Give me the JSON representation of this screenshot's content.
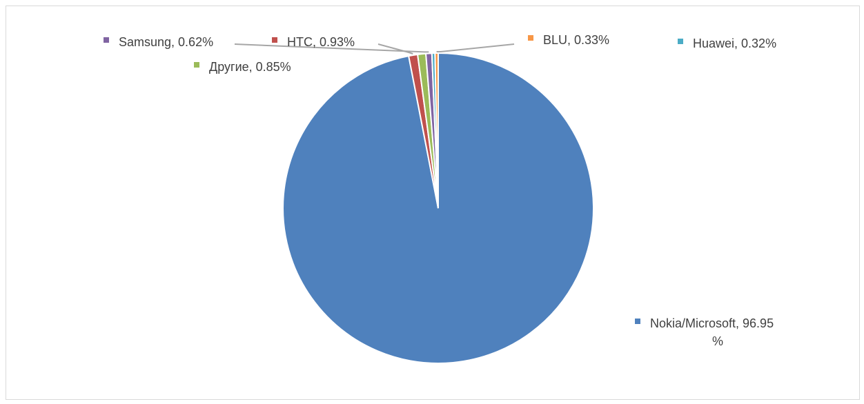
{
  "chart_data": {
    "type": "pie",
    "title": "",
    "start_angle_deg": 0,
    "direction": "clockwise",
    "slices": [
      {
        "name": "Nokia/Microsoft",
        "value": 96.95,
        "label": "Nokia/Microsoft, 96.95 %",
        "color": "#4F81BD"
      },
      {
        "name": "HTC",
        "value": 0.93,
        "label": "HTC, 0.93%",
        "color": "#C0504D"
      },
      {
        "name": "Другие",
        "value": 0.85,
        "label": "Другие, 0.85%",
        "color": "#9BBB59"
      },
      {
        "name": "Samsung",
        "value": 0.62,
        "label": "Samsung, 0.62%",
        "color": "#8064A2"
      },
      {
        "name": "Huawei",
        "value": 0.32,
        "label": "Huawei, 0.32%",
        "color": "#4BACC6"
      },
      {
        "name": "BLU",
        "value": 0.33,
        "label": "BLU, 0.33%",
        "color": "#F79646"
      }
    ],
    "leader_line_color": "#a6a6a6",
    "legend_key_labels": true
  }
}
